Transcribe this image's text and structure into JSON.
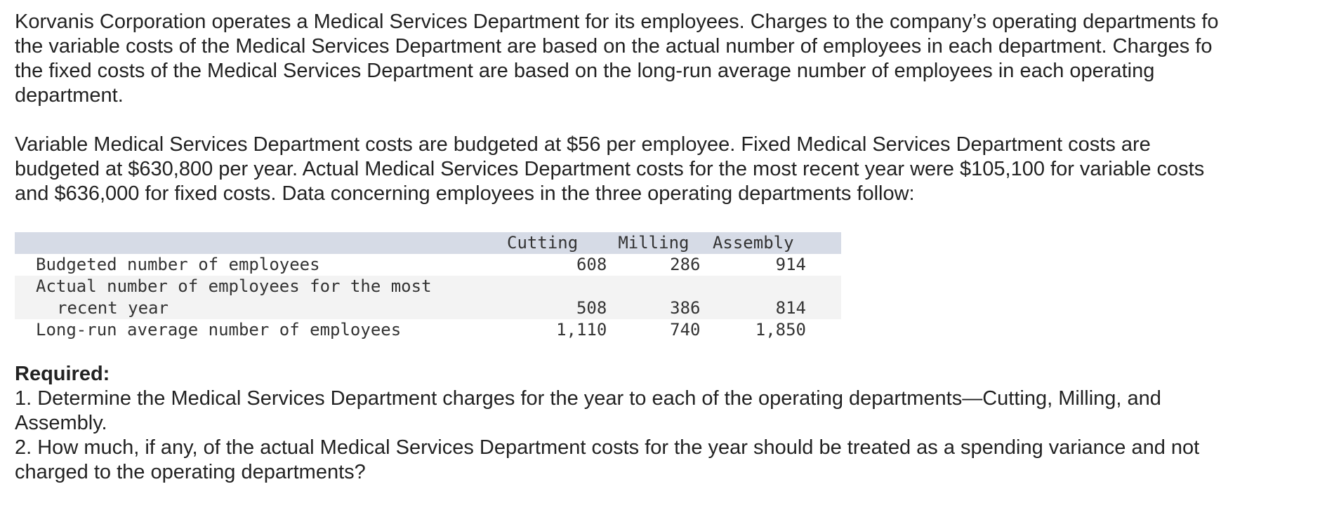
{
  "intro": {
    "p1": [
      "Korvanis Corporation operates a Medical Services Department for its employees. Charges to the company’s operating departments fo",
      "the variable costs of the Medical Services Department are based on the actual number of employees in each department. Charges fo",
      "the fixed costs of the Medical Services Department are based on the long-run average number of employees in each operating",
      "department."
    ],
    "p2": [
      "Variable Medical Services Department costs are budgeted at $56 per employee. Fixed Medical Services Department costs are",
      "budgeted at $630,800 per year. Actual Medical Services Department costs for the most recent year were $105,100 for variable costs",
      "and $636,000 for fixed costs. Data concerning employees in the three operating departments follow:"
    ]
  },
  "table": {
    "headers": [
      "Cutting",
      "Milling",
      "Assembly"
    ],
    "rows": [
      {
        "label": "Budgeted number of employees",
        "values": [
          "608",
          "286",
          "914"
        ]
      },
      {
        "label": "Actual number of employees for the most",
        "values": [
          "",
          "",
          ""
        ]
      },
      {
        "label": "recent year",
        "values": [
          "508",
          "386",
          "814"
        ]
      },
      {
        "label": "Long-run average number of employees",
        "values": [
          "1,110",
          "740",
          "1,850"
        ]
      }
    ]
  },
  "required": {
    "title": "Required:",
    "item1": [
      "1. Determine the Medical Services Department charges for the year to each of the operating departments—Cutting, Milling, and",
      "Assembly."
    ],
    "item2": [
      "2. How much, if any, of the actual Medical Services Department costs for the year should be treated as a spending variance and not",
      "charged to the operating departments?"
    ]
  }
}
